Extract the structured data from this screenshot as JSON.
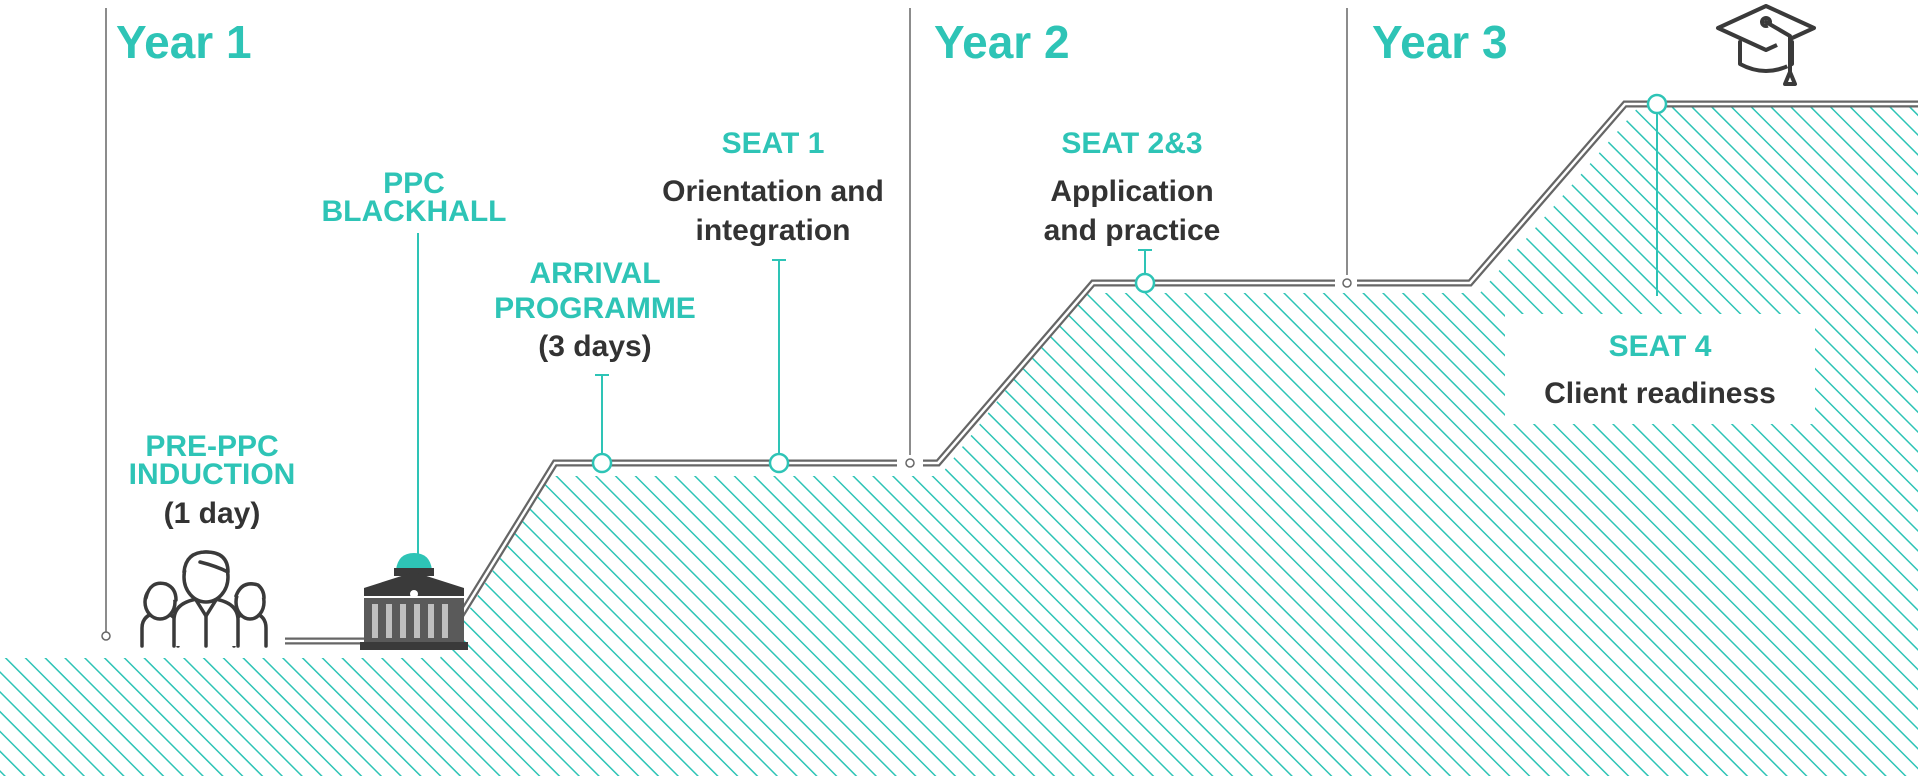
{
  "colors": {
    "accent": "#2ec4b6",
    "line": "#666666",
    "text": "#333333",
    "hatch": "#2ec4b6"
  },
  "years": [
    {
      "label": "Year 1"
    },
    {
      "label": "Year 2"
    },
    {
      "label": "Year 3"
    }
  ],
  "milestones": {
    "pre_ppc": {
      "title_line1": "PRE-PPC",
      "title_line2": "INDUCTION",
      "detail": "(1 day)",
      "icon": "people-group-icon"
    },
    "ppc_blackhall": {
      "title_line1": "PPC",
      "title_line2": "BLACKHALL",
      "icon": "building-icon"
    },
    "arrival": {
      "title_line1": "ARRIVAL",
      "title_line2": "PROGRAMME",
      "detail": "(3 days)"
    },
    "seat1": {
      "title": "SEAT 1",
      "detail_line1": "Orientation and",
      "detail_line2": "integration"
    },
    "seat23": {
      "title": "SEAT 2&3",
      "detail_line1": "Application",
      "detail_line2": "and practice"
    },
    "seat4": {
      "title": "SEAT 4",
      "detail": "Client readiness",
      "icon": "graduation-cap-icon"
    }
  }
}
